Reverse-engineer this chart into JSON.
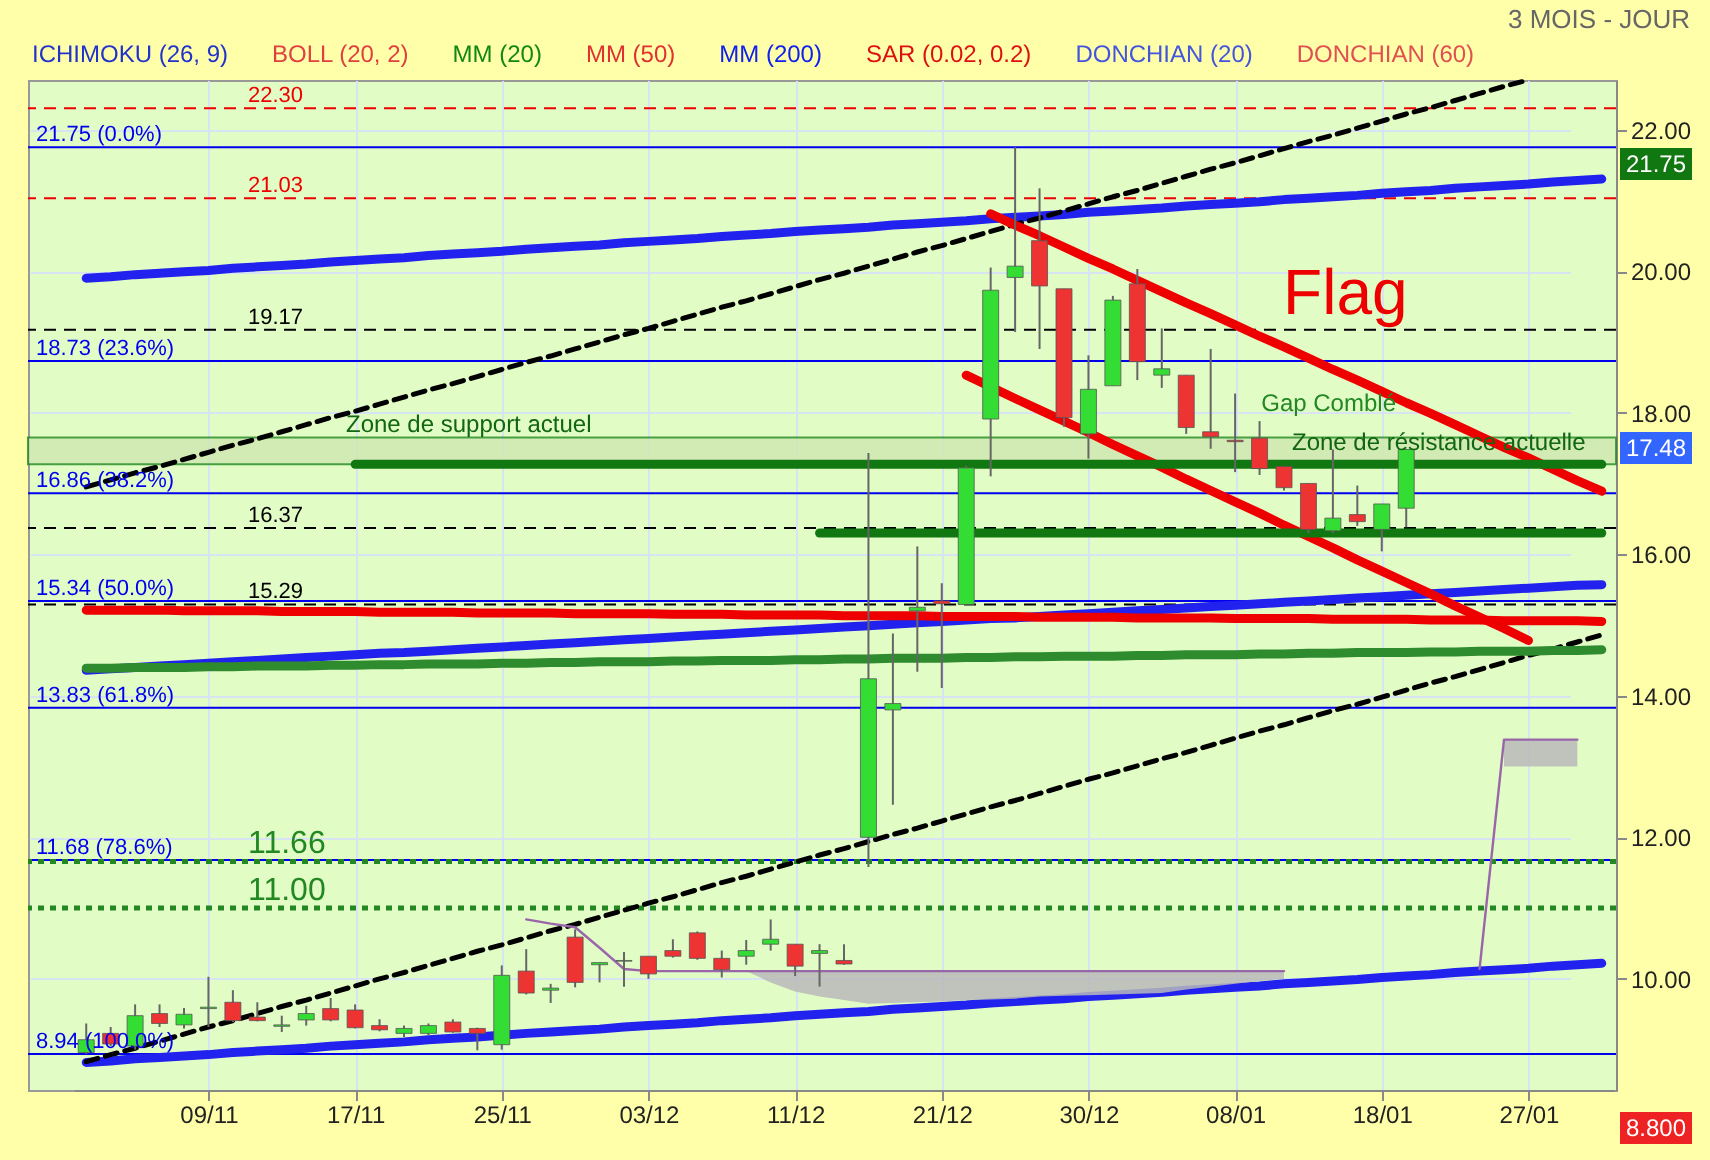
{
  "chart_data": {
    "type": "candlestick",
    "subtitle": "3 MOIS - JOUR",
    "categories": [
      null,
      null,
      null,
      null,
      null,
      "09/11",
      null,
      null,
      null,
      null,
      null,
      "17/11",
      null,
      null,
      null,
      null,
      null,
      "25/11",
      null,
      null,
      null,
      null,
      null,
      "03/12",
      null,
      null,
      null,
      null,
      null,
      "11/12",
      null,
      null,
      null,
      null,
      null,
      "21/12",
      null,
      null,
      null,
      null,
      null,
      "30/12",
      null,
      null,
      null,
      null,
      null,
      "08/01",
      null,
      null,
      null,
      null,
      null,
      "18/01",
      null,
      null,
      null,
      null,
      null,
      "27/01",
      null,
      null,
      null
    ],
    "ohlc": [
      [
        8.96,
        9.37,
        8.94,
        9.14
      ],
      [
        9.23,
        9.32,
        9.05,
        9.08
      ],
      [
        9.05,
        9.64,
        9.0,
        9.48
      ],
      [
        9.51,
        9.64,
        9.32,
        9.37
      ],
      [
        9.35,
        9.59,
        9.3,
        9.5
      ],
      [
        9.58,
        10.03,
        9.32,
        9.6
      ],
      [
        9.67,
        9.84,
        9.39,
        9.41
      ],
      [
        9.46,
        9.67,
        9.4,
        9.41
      ],
      [
        9.33,
        9.48,
        9.25,
        9.35
      ],
      [
        9.42,
        9.62,
        9.34,
        9.51
      ],
      [
        9.58,
        9.73,
        9.4,
        9.42
      ],
      [
        9.56,
        9.64,
        9.3,
        9.31
      ],
      [
        9.34,
        9.43,
        9.26,
        9.28
      ],
      [
        9.23,
        9.34,
        9.18,
        9.3
      ],
      [
        9.23,
        9.37,
        9.2,
        9.34
      ],
      [
        9.39,
        9.43,
        9.24,
        9.25
      ],
      [
        9.3,
        9.31,
        8.99,
        9.23
      ],
      [
        9.07,
        10.19,
        9.0,
        10.05
      ],
      [
        10.11,
        10.42,
        9.78,
        9.8
      ],
      [
        9.84,
        9.93,
        9.66,
        9.87
      ],
      [
        10.59,
        10.7,
        9.88,
        9.95
      ],
      [
        10.2,
        10.23,
        9.95,
        10.23
      ],
      [
        10.25,
        10.38,
        9.89,
        10.26
      ],
      [
        10.32,
        10.32,
        10.0,
        10.07
      ],
      [
        10.4,
        10.56,
        10.3,
        10.32
      ],
      [
        10.65,
        10.67,
        10.27,
        10.29
      ],
      [
        10.29,
        10.4,
        10.02,
        10.13
      ],
      [
        10.32,
        10.55,
        10.2,
        10.4
      ],
      [
        10.49,
        10.84,
        10.4,
        10.56
      ],
      [
        10.49,
        10.49,
        10.04,
        10.18
      ],
      [
        10.36,
        10.49,
        9.89,
        10.4
      ],
      [
        10.26,
        10.49,
        10.2,
        10.21
      ],
      [
        12.0,
        17.43,
        11.58,
        14.24
      ],
      [
        13.8,
        14.88,
        12.46,
        13.89
      ],
      [
        15.2,
        16.11,
        14.34,
        15.25
      ],
      [
        15.34,
        15.59,
        14.11,
        15.3
      ],
      [
        15.29,
        17.25,
        15.29,
        17.22
      ],
      [
        17.91,
        20.05,
        17.1,
        19.73
      ],
      [
        19.91,
        21.75,
        19.14,
        20.07
      ],
      [
        20.43,
        21.17,
        18.9,
        19.79
      ],
      [
        19.75,
        19.75,
        17.8,
        17.93
      ],
      [
        17.7,
        18.81,
        17.35,
        18.33
      ],
      [
        18.38,
        19.65,
        18.38,
        19.59
      ],
      [
        19.82,
        20.03,
        18.46,
        18.72
      ],
      [
        18.53,
        19.19,
        18.35,
        18.62
      ],
      [
        18.53,
        18.53,
        17.7,
        17.79
      ],
      [
        17.73,
        18.9,
        17.49,
        17.66
      ],
      [
        17.61,
        18.27,
        17.16,
        17.59
      ],
      [
        17.64,
        17.88,
        17.12,
        17.21
      ],
      [
        17.24,
        17.24,
        16.9,
        16.94
      ],
      [
        17.0,
        17.0,
        16.3,
        16.35
      ],
      [
        16.33,
        17.48,
        16.3,
        16.51
      ],
      [
        16.56,
        16.97,
        16.4,
        16.46
      ],
      [
        16.35,
        16.71,
        16.04,
        16.71
      ],
      [
        16.65,
        17.48,
        16.38,
        17.48
      ],
      null,
      null,
      null,
      null,
      null,
      null,
      null,
      null
    ],
    "colors": [
      "#33dd33",
      "#ee3333",
      "#33dd33",
      "#ee3333",
      "#33dd33",
      "#33dd33",
      "#ee3333",
      "#ee3333",
      "#33dd33",
      "#33dd33",
      "#ee3333",
      "#ee3333",
      "#ee3333",
      "#33dd33",
      "#33dd33",
      "#ee3333",
      "#ee3333",
      "#33dd33",
      "#ee3333",
      "#33dd33",
      "#ee3333",
      "#33dd33",
      "#33dd33",
      "#ee3333",
      "#ee3333",
      "#ee3333",
      "#ee3333",
      "#33dd33",
      "#33dd33",
      "#ee3333",
      "#33dd33",
      "#ee3333",
      "#33dd33",
      "#33dd33",
      "#33dd33",
      "#ee3333",
      "#33dd33",
      "#33dd33",
      "#33dd33",
      "#ee3333",
      "#ee3333",
      "#33dd33",
      "#33dd33",
      "#ee3333",
      "#33dd33",
      "#ee3333",
      "#ee3333",
      "#ee3333",
      "#ee3333",
      "#ee3333",
      "#ee3333",
      "#33dd33",
      "#ee3333",
      "#33dd33",
      "#33dd33",
      null,
      null,
      null,
      null,
      null,
      null,
      null,
      null
    ],
    "series": [
      {
        "type": "line",
        "color": "#2222ee",
        "values": [
          8.82,
          8.84,
          8.87,
          8.89,
          8.91,
          8.93,
          8.96,
          8.98,
          9.0,
          9.02,
          9.05,
          9.07,
          9.09,
          9.11,
          9.14,
          9.16,
          9.18,
          null,
          9.23,
          9.25,
          9.27,
          9.29,
          9.32,
          9.34,
          9.36,
          9.38,
          9.41,
          9.43,
          9.45,
          9.48,
          9.5,
          9.52,
          9.54,
          9.57,
          9.59,
          9.61,
          9.63,
          9.66,
          9.68,
          9.7,
          9.72,
          9.75,
          9.77,
          9.79,
          9.81,
          9.84,
          9.86,
          9.88,
          9.9,
          9.93,
          9.95,
          9.97,
          9.99,
          10.02,
          10.04,
          10.06,
          10.09,
          10.11,
          10.13,
          10.15,
          10.18,
          10.2,
          10.22
        ]
      },
      {
        "type": "line",
        "color": "#2222ee",
        "values": [
          19.9,
          19.92,
          19.95,
          19.97,
          19.99,
          20.01,
          20.04,
          20.06,
          20.08,
          20.1,
          20.13,
          20.15,
          20.17,
          20.19,
          20.22,
          20.24,
          20.26,
          20.28,
          20.31,
          20.33,
          20.35,
          20.37,
          20.4,
          20.42,
          20.44,
          20.46,
          20.49,
          20.51,
          20.53,
          20.56,
          20.58,
          20.6,
          20.62,
          20.65,
          20.67,
          20.69,
          20.71,
          20.74,
          20.76,
          20.78,
          20.8,
          20.83,
          20.85,
          20.87,
          20.89,
          20.92,
          20.94,
          20.96,
          20.98,
          21.01,
          21.03,
          21.05,
          21.07,
          21.1,
          21.12,
          21.14,
          21.17,
          21.19,
          21.21,
          21.23,
          21.26,
          21.28,
          21.3
        ]
      },
      {
        "type": "line",
        "color": "#2222ee",
        "values": [
          14.36,
          14.38,
          14.4,
          14.42,
          14.44,
          14.46,
          14.48,
          14.5,
          14.52,
          14.54,
          14.56,
          14.58,
          14.6,
          14.61,
          14.63,
          14.65,
          14.67,
          14.69,
          14.71,
          14.73,
          14.75,
          14.77,
          14.79,
          14.81,
          14.83,
          14.85,
          14.87,
          14.89,
          14.91,
          14.93,
          14.95,
          14.97,
          14.99,
          15.01,
          15.03,
          15.05,
          15.07,
          15.09,
          15.1,
          15.12,
          15.14,
          15.16,
          15.18,
          15.2,
          15.22,
          15.24,
          15.26,
          15.28,
          15.3,
          15.32,
          15.34,
          15.36,
          15.38,
          15.4,
          15.42,
          15.44,
          15.46,
          15.48,
          15.5,
          15.52,
          15.54,
          15.56,
          15.57
        ]
      },
      {
        "type": "line",
        "color": "#000000",
        "line_style": "dashed",
        "values": [
          16.95,
          17.05,
          17.15,
          17.24,
          17.34,
          17.44,
          17.54,
          17.63,
          17.73,
          17.83,
          17.93,
          18.02,
          18.12,
          18.22,
          18.32,
          18.41,
          18.51,
          18.61,
          18.71,
          18.8,
          18.9,
          19.0,
          19.1,
          19.19,
          19.29,
          19.39,
          19.49,
          19.58,
          19.68,
          19.78,
          19.88,
          19.97,
          20.07,
          20.17,
          20.27,
          20.36,
          20.46,
          20.56,
          20.66,
          20.75,
          20.85,
          20.95,
          21.05,
          21.14,
          21.24,
          21.34,
          21.44,
          21.53,
          21.63,
          21.73,
          21.83,
          21.92,
          22.02,
          22.12,
          22.22,
          22.31,
          22.41,
          22.51,
          22.61,
          22.7,
          null,
          null,
          null
        ]
      },
      {
        "type": "line",
        "color": "#000000",
        "line_style": "dashed",
        "values": [
          8.83,
          8.93,
          9.02,
          9.12,
          9.22,
          9.32,
          9.41,
          9.51,
          9.61,
          9.7,
          9.8,
          9.9,
          10.0,
          10.09,
          10.19,
          10.29,
          10.39,
          10.48,
          10.58,
          10.68,
          10.77,
          10.87,
          10.97,
          11.07,
          11.16,
          11.26,
          11.36,
          11.45,
          11.55,
          11.65,
          11.75,
          11.84,
          11.94,
          12.04,
          12.13,
          12.23,
          12.33,
          12.43,
          12.52,
          12.62,
          12.72,
          12.82,
          12.91,
          13.01,
          13.11,
          13.2,
          13.3,
          13.4,
          13.5,
          13.59,
          13.69,
          13.79,
          13.88,
          13.98,
          14.08,
          14.18,
          14.27,
          14.37,
          14.47,
          14.57,
          14.66,
          14.76,
          14.86
        ]
      },
      {
        "type": "line",
        "color": "#ee0000",
        "values": [
          null,
          null,
          null,
          null,
          null,
          null,
          null,
          null,
          null,
          null,
          null,
          null,
          null,
          null,
          null,
          null,
          null,
          null,
          null,
          null,
          null,
          null,
          null,
          null,
          null,
          null,
          null,
          null,
          null,
          null,
          null,
          null,
          null,
          null,
          null,
          null,
          null,
          20.81,
          20.65,
          20.5,
          20.34,
          20.18,
          20.03,
          19.87,
          19.71,
          19.55,
          19.4,
          19.24,
          19.08,
          18.93,
          18.77,
          18.61,
          18.46,
          18.3,
          18.14,
          17.99,
          17.83,
          17.67,
          17.51,
          17.36,
          17.2,
          17.04,
          16.89
        ]
      },
      {
        "type": "line",
        "color": "#ee0000",
        "values": [
          null,
          null,
          null,
          null,
          null,
          null,
          null,
          null,
          null,
          null,
          null,
          null,
          null,
          null,
          null,
          null,
          null,
          null,
          null,
          null,
          null,
          null,
          null,
          null,
          null,
          null,
          null,
          null,
          null,
          null,
          null,
          null,
          null,
          null,
          null,
          null,
          18.53,
          null,
          18.2,
          18.04,
          17.88,
          17.72,
          17.55,
          17.39,
          17.23,
          17.06,
          16.9,
          16.74,
          16.58,
          16.41,
          16.25,
          16.09,
          15.92,
          15.76,
          15.6,
          15.44,
          15.27,
          15.11,
          14.95,
          14.78,
          null,
          null,
          null
        ]
      },
      {
        "type": "line",
        "color": "#ee0000",
        "values": [
          15.21,
          15.21,
          15.21,
          15.21,
          15.2,
          15.2,
          15.2,
          15.2,
          15.19,
          15.19,
          15.19,
          15.19,
          15.18,
          15.18,
          15.18,
          15.18,
          15.17,
          15.17,
          15.17,
          15.17,
          15.16,
          15.16,
          15.16,
          15.16,
          15.15,
          15.15,
          15.15,
          15.14,
          15.14,
          15.14,
          15.14,
          15.13,
          15.13,
          15.13,
          15.13,
          15.12,
          15.12,
          15.12,
          15.12,
          15.11,
          15.11,
          15.11,
          15.11,
          15.1,
          15.1,
          15.1,
          15.1,
          15.09,
          15.09,
          15.09,
          15.09,
          15.08,
          15.08,
          15.08,
          15.08,
          15.07,
          15.07,
          15.07,
          15.06,
          15.06,
          15.06,
          15.06,
          15.05
        ]
      },
      {
        "type": "line",
        "color": "#2e8b2e",
        "values": [
          14.39,
          14.39,
          14.4,
          14.4,
          14.4,
          14.41,
          14.41,
          14.42,
          14.42,
          14.42,
          14.43,
          14.43,
          14.44,
          14.44,
          14.45,
          14.45,
          14.45,
          14.46,
          14.46,
          14.47,
          14.47,
          14.48,
          14.48,
          14.48,
          14.49,
          14.49,
          14.5,
          14.5,
          14.5,
          14.51,
          14.51,
          14.52,
          14.52,
          14.53,
          14.53,
          14.53,
          14.54,
          14.54,
          14.55,
          14.55,
          14.56,
          14.56,
          14.56,
          14.57,
          14.57,
          14.58,
          14.58,
          14.58,
          14.59,
          14.59,
          14.6,
          14.6,
          14.61,
          14.61,
          14.61,
          14.62,
          14.62,
          14.63,
          14.63,
          14.63,
          14.64,
          14.64,
          14.65
        ]
      },
      {
        "type": "line",
        "color": "#117711",
        "values": [
          null,
          null,
          null,
          null,
          null,
          null,
          null,
          null,
          null,
          null,
          null,
          17.27,
          17.27,
          17.27,
          17.27,
          17.27,
          17.27,
          17.27,
          17.27,
          17.27,
          17.27,
          17.27,
          17.27,
          17.27,
          17.27,
          17.27,
          17.27,
          17.27,
          17.27,
          17.27,
          17.27,
          17.27,
          17.27,
          17.27,
          17.27,
          17.27,
          17.27,
          17.27,
          17.27,
          17.27,
          17.27,
          17.27,
          17.27,
          17.27,
          17.27,
          17.27,
          17.27,
          17.27,
          17.27,
          17.27,
          17.27,
          17.27,
          17.27,
          17.27,
          17.27,
          17.27,
          17.27,
          17.27,
          17.27,
          17.27,
          17.27,
          17.27,
          17.27
        ]
      },
      {
        "type": "line",
        "color": "#117711",
        "values": [
          null,
          null,
          null,
          null,
          null,
          null,
          null,
          null,
          null,
          null,
          null,
          null,
          null,
          null,
          null,
          null,
          null,
          null,
          null,
          null,
          null,
          null,
          null,
          null,
          null,
          null,
          null,
          null,
          null,
          null,
          16.3,
          16.3,
          16.3,
          16.3,
          16.3,
          16.3,
          16.3,
          16.3,
          16.3,
          16.3,
          16.3,
          16.3,
          16.3,
          16.3,
          16.3,
          16.3,
          16.3,
          16.3,
          16.3,
          16.3,
          16.3,
          16.3,
          16.3,
          16.3,
          16.3,
          16.3,
          16.3,
          16.3,
          16.3,
          16.3,
          16.3,
          16.3,
          16.3
        ]
      },
      {
        "type": "line",
        "color": "#9966aa",
        "line_style": "solid",
        "values": [
          null,
          null,
          null,
          null,
          null,
          null,
          null,
          null,
          null,
          null,
          null,
          null,
          null,
          null,
          null,
          null,
          null,
          null,
          10.84,
          10.78,
          10.73,
          10.44,
          10.14,
          10.11,
          10.11,
          10.11,
          10.11,
          10.11,
          10.11,
          10.11,
          10.11,
          10.11,
          10.11,
          10.11,
          10.11,
          10.11,
          10.11,
          10.11,
          10.11,
          10.11,
          10.11,
          10.11,
          10.11,
          10.11,
          10.11,
          10.11,
          10.11,
          10.11,
          10.11,
          10.11,
          null,
          null,
          null,
          null,
          null,
          null,
          null,
          null,
          null,
          null,
          null,
          null,
          null
        ],
        "lower": [
          null,
          null,
          null,
          null,
          null,
          null,
          null,
          null,
          null,
          null,
          null,
          null,
          null,
          null,
          null,
          null,
          null,
          null,
          null,
          null,
          null,
          null,
          null,
          null,
          null,
          null,
          null,
          10.11,
          9.95,
          9.82,
          9.75,
          9.7,
          9.65,
          9.66,
          9.67,
          9.68,
          9.7,
          9.71,
          9.72,
          9.75,
          9.76,
          9.77,
          9.78,
          9.79,
          9.8,
          9.85,
          9.89,
          9.93,
          9.97,
          10.0,
          null,
          null,
          null,
          null,
          null,
          null,
          null,
          null,
          null,
          null,
          null,
          null,
          null
        ],
        "upper": [
          null,
          null,
          null,
          null,
          null,
          null,
          null,
          null,
          null,
          null,
          null,
          null,
          null,
          null,
          null,
          null,
          null,
          null,
          null,
          null,
          null,
          null,
          null,
          null,
          null,
          null,
          null,
          10.11,
          10.11,
          10.11,
          10.11,
          10.11,
          10.11,
          10.11,
          10.11,
          10.11,
          10.11,
          10.11,
          10.11,
          10.11,
          10.11,
          10.11,
          10.11,
          10.11,
          10.11,
          10.11,
          10.11,
          10.11,
          10.11,
          10.11,
          null,
          null,
          null,
          null,
          null,
          null,
          null,
          null,
          null,
          null,
          null,
          null,
          null
        ]
      },
      {
        "type": "line",
        "color": "#9966aa",
        "line_style": "solid",
        "values": [
          null,
          null,
          null,
          null,
          null,
          null,
          null,
          null,
          null,
          null,
          null,
          null,
          null,
          null,
          null,
          null,
          null,
          null,
          null,
          null,
          null,
          null,
          null,
          null,
          null,
          null,
          null,
          null,
          null,
          null,
          null,
          null,
          null,
          null,
          null,
          null,
          null,
          null,
          null,
          null,
          null,
          null,
          null,
          null,
          null,
          null,
          null,
          null,
          null,
          null,
          null,
          null,
          null,
          null,
          null,
          null,
          null,
          10.14,
          13.38,
          13.38,
          13.38,
          13.38,
          null
        ],
        "lower": [
          null,
          null,
          null,
          null,
          null,
          null,
          null,
          null,
          null,
          null,
          null,
          null,
          null,
          null,
          null,
          null,
          null,
          null,
          null,
          null,
          null,
          null,
          null,
          null,
          null,
          null,
          null,
          null,
          null,
          null,
          null,
          null,
          null,
          null,
          null,
          null,
          null,
          null,
          null,
          null,
          null,
          null,
          null,
          null,
          null,
          null,
          null,
          null,
          null,
          null,
          null,
          null,
          null,
          null,
          null,
          null,
          null,
          null,
          13.0,
          13.0,
          13.0,
          13.0,
          null
        ],
        "upper": [
          null,
          null,
          null,
          null,
          null,
          null,
          null,
          null,
          null,
          null,
          null,
          null,
          null,
          null,
          null,
          null,
          null,
          null,
          null,
          null,
          null,
          null,
          null,
          null,
          null,
          null,
          null,
          null,
          null,
          null,
          null,
          null,
          null,
          null,
          null,
          null,
          null,
          null,
          null,
          null,
          null,
          null,
          null,
          null,
          null,
          null,
          null,
          null,
          null,
          null,
          null,
          null,
          null,
          null,
          null,
          null,
          null,
          null,
          13.38,
          13.38,
          13.38,
          13.38,
          null
        ]
      }
    ],
    "ref_lines": [
      {
        "axis": "y",
        "value": 22.3,
        "label": "22.30",
        "color": "#ee0000",
        "line_style": "dashed"
      },
      {
        "axis": "y",
        "value": 21.75,
        "label": "21.75  (0.0%)",
        "color": "#0000ee",
        "line_style": "solid"
      },
      {
        "axis": "y",
        "value": 21.03,
        "label": "21.03",
        "color": "#ee0000",
        "line_style": "dashed"
      },
      {
        "axis": "y",
        "value": 19.17,
        "label": "19.17",
        "color": "#000000",
        "line_style": "dashed"
      },
      {
        "axis": "y",
        "value": 18.73,
        "label": "18.73  (23.6%)",
        "color": "#0000ee",
        "line_style": "solid"
      },
      {
        "axis": "y",
        "value": 16.86,
        "label": "16.86  (38.2%)",
        "color": "#0000ee",
        "line_style": "solid"
      },
      {
        "axis": "y",
        "value": 16.37,
        "label": "16.37",
        "color": "#000000",
        "line_style": "dashed"
      },
      {
        "axis": "y",
        "value": 15.34,
        "label": "15.34  (50.0%)",
        "color": "#0000ee",
        "line_style": "solid"
      },
      {
        "axis": "y",
        "value": 15.29,
        "label": "15.29",
        "color": "#000000",
        "line_style": "dashed"
      },
      {
        "axis": "y",
        "value": 13.83,
        "label": "13.83  (61.8%)",
        "color": "#0000ee",
        "line_style": "solid"
      },
      {
        "axis": "y",
        "value": 11.68,
        "label": "11.68  (78.6%)",
        "color": "#0000ee",
        "line_style": "solid"
      },
      {
        "axis": "y",
        "value": 11.66,
        "label": "11.66",
        "color": "#228822",
        "line_style": "dotted"
      },
      {
        "axis": "y",
        "value": 11.0,
        "label": "11.00",
        "color": "#228822",
        "line_style": "dotted"
      },
      {
        "axis": "y",
        "value": 8.94,
        "label": "8.94  (100.0%)",
        "color": "#0000ee",
        "line_style": "solid"
      }
    ],
    "bands": [
      {
        "axis": "y",
        "from": 17.27,
        "to": 17.65,
        "label": "Gap Comblé",
        "color": "#cfe8b0"
      }
    ],
    "annotations": [
      "ICHIMOKU (26, 9)",
      "BOLL (20, 2)",
      "MM (20)",
      "MM (50)",
      "MM (200)",
      "SAR (0.02, 0.2)",
      "DONCHIAN (20)",
      "DONCHIAN (60)",
      {
        "text": "Flag",
        "x": "08/01",
        "y": 19.2
      },
      "Zone de support actuel",
      "Zone de résistance actuelle",
      "21.75",
      "17.48",
      "8.800"
    ],
    "ylim": [
      8.43,
      22.7
    ],
    "yticks": [
      {
        "value": 10,
        "label": "10.00"
      },
      {
        "value": 12,
        "label": "12.00"
      },
      {
        "value": 14,
        "label": "14.00"
      },
      {
        "value": 16,
        "label": "16.00"
      },
      {
        "value": 18,
        "label": "18.00"
      },
      {
        "value": 20,
        "label": "20.00"
      },
      {
        "value": 22,
        "label": "22.00"
      }
    ],
    "grid": true
  }
}
